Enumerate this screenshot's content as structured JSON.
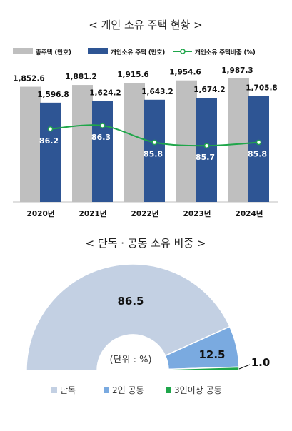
{
  "chart_data": [
    {
      "type": "bar+line",
      "title": "< 개인 소유 주택 현황 >",
      "categories": [
        "2020년",
        "2021년",
        "2022년",
        "2023년",
        "2024년"
      ],
      "series": [
        {
          "name": "총주택 (만호)",
          "kind": "bar",
          "color": "#bfbfbf",
          "values": [
            1852.6,
            1881.2,
            1915.6,
            1954.6,
            1987.3
          ],
          "labels": [
            "1,852.6",
            "1,881.2",
            "1,915.6",
            "1,954.6",
            "1,987.3"
          ]
        },
        {
          "name": "개인소유 주택 (만호)",
          "kind": "bar",
          "color": "#2e5594",
          "values": [
            1596.8,
            1624.2,
            1643.2,
            1674.2,
            1705.8
          ],
          "labels": [
            "1,596.8",
            "1,624.2",
            "1,643.2",
            "1,674.2",
            "1,705.8"
          ]
        },
        {
          "name": "개인소유 주택비중 (%)",
          "kind": "line",
          "color": "#1fa64a",
          "values": [
            86.2,
            86.3,
            85.8,
            85.7,
            85.8
          ],
          "labels": [
            "86.2",
            "86.3",
            "85.8",
            "85.7",
            "85.8"
          ]
        }
      ],
      "bar_ylim": [
        0,
        2100
      ],
      "line_ylim": [
        85.0,
        86.6
      ],
      "legend": "top"
    },
    {
      "type": "pie",
      "subtype": "half-donut",
      "title": "< 단독 · 공동 소유 비중 >",
      "center_label": "(단위 : %)",
      "slices": [
        {
          "name": "단독",
          "value": 86.5,
          "label": "86.5",
          "color": "#c3d0e3"
        },
        {
          "name": "2인 공동",
          "value": 12.5,
          "label": "12.5",
          "color": "#7aaae0"
        },
        {
          "name": "3인이상 공동",
          "value": 1.0,
          "label": "1.0",
          "color": "#1fa64a"
        }
      ],
      "legend": "bottom"
    }
  ]
}
